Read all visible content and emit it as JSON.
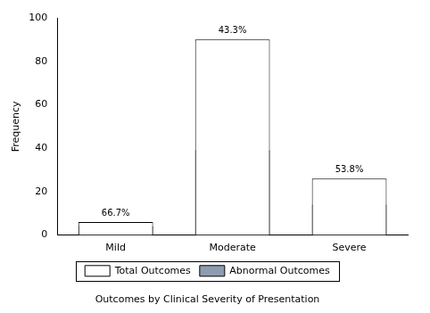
{
  "chart_data": {
    "type": "bar",
    "title": "Outcomes by Clinical Severity of Presentation",
    "y_label": "Frequency",
    "categories": [
      "Mild",
      "Moderate",
      "Severe"
    ],
    "series": [
      {
        "name": "Total Outcomes",
        "color": "#ffffff",
        "values": [
          6,
          90,
          26
        ]
      },
      {
        "name": "Abnormal Outcomes",
        "color": "#8e9cb0",
        "values": [
          4,
          39,
          14
        ]
      }
    ],
    "annotations": [
      "66.7%",
      "43.3%",
      "53.8%"
    ],
    "ylim": [
      0,
      100
    ],
    "yticks": [
      0,
      20,
      40,
      60,
      80,
      100
    ],
    "grid": false,
    "stacked": false,
    "legend": "bottom"
  }
}
